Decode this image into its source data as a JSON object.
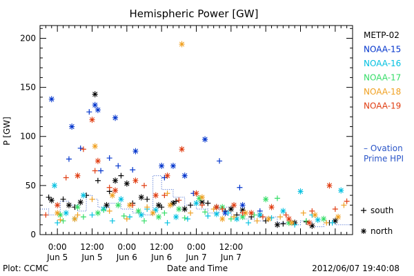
{
  "chart_data": {
    "type": "scatter",
    "title": "Hemispheric Power [GW]",
    "xlabel": "Date and Time",
    "ylabel": "P [GW]",
    "ylim": [
      0,
      213
    ],
    "xlim": [
      -6,
      102
    ],
    "x_units": "hours since Jun 5 00:00",
    "yticks": [
      "0",
      "50",
      "100",
      "150",
      "200"
    ],
    "xticks": [
      {
        "t": 0,
        "time": "0:00",
        "date": "Jun 5"
      },
      {
        "t": 12,
        "time": "12:00",
        "date": "Jun 5"
      },
      {
        "t": 24,
        "time": "0:00",
        "date": "Jun 6"
      },
      {
        "t": 36,
        "time": "12:00",
        "date": "Jun 6"
      },
      {
        "t": 48,
        "time": "0:00",
        "date": "Jun 7"
      },
      {
        "t": 60,
        "time": "12:00",
        "date": "Jun 7"
      }
    ],
    "legend_placement": "right",
    "marker_legend": [
      {
        "symbol": "+",
        "label": "south"
      },
      {
        "symbol": "*",
        "label": "north"
      }
    ],
    "ovation_label_1": "– Ovation",
    "ovation_label_2": "Prime HPI",
    "series": [
      {
        "name": "METP-02",
        "color": "#000000",
        "north": [
          [
            -2,
            35
          ],
          [
            4,
            30
          ],
          [
            8,
            33
          ],
          [
            13,
            143
          ],
          [
            17,
            30
          ],
          [
            20,
            55
          ],
          [
            24,
            52
          ],
          [
            29,
            38
          ],
          [
            35,
            30
          ],
          [
            40,
            32
          ],
          [
            44,
            26
          ],
          [
            50,
            33
          ],
          [
            55,
            28
          ],
          [
            60,
            26
          ],
          [
            64,
            25
          ],
          [
            70,
            20
          ],
          [
            76,
            10
          ],
          [
            82,
            12
          ],
          [
            88,
            9
          ],
          [
            96,
            14
          ]
        ],
        "south": [
          [
            -3,
            38
          ],
          [
            2,
            36
          ],
          [
            6,
            28
          ],
          [
            10,
            40
          ],
          [
            14,
            55
          ],
          [
            18,
            44
          ],
          [
            22,
            60
          ],
          [
            26,
            32
          ],
          [
            31,
            36
          ],
          [
            36,
            28
          ],
          [
            41,
            34
          ],
          [
            46,
            30
          ],
          [
            52,
            32
          ],
          [
            58,
            24
          ],
          [
            62,
            20
          ],
          [
            67,
            18
          ],
          [
            72,
            14
          ],
          [
            78,
            11
          ],
          [
            86,
            13
          ],
          [
            94,
            12
          ]
        ]
      },
      {
        "name": "NOAA-15",
        "color": "#0033cc",
        "north": [
          [
            -2,
            138
          ],
          [
            5,
            110
          ],
          [
            13,
            132
          ],
          [
            14,
            127
          ],
          [
            20,
            119
          ],
          [
            27,
            85
          ],
          [
            36,
            70
          ],
          [
            40,
            70
          ],
          [
            44,
            60
          ],
          [
            51,
            97
          ],
          [
            58,
            22
          ],
          [
            64,
            30
          ]
        ],
        "south": [
          [
            4,
            77
          ],
          [
            8,
            88
          ],
          [
            11,
            125
          ],
          [
            15,
            65
          ],
          [
            18,
            78
          ],
          [
            21,
            70
          ],
          [
            26,
            66
          ],
          [
            37,
            58
          ],
          [
            47,
            42
          ],
          [
            56,
            75
          ],
          [
            63,
            48
          ],
          [
            70,
            24
          ]
        ]
      },
      {
        "name": "NOAA-16",
        "color": "#00c0e0",
        "north": [
          [
            -1,
            50
          ],
          [
            3,
            22
          ],
          [
            9,
            40
          ],
          [
            16,
            26
          ],
          [
            22,
            36
          ],
          [
            29,
            20
          ],
          [
            34,
            25
          ],
          [
            41,
            18
          ],
          [
            48,
            32
          ],
          [
            55,
            21
          ],
          [
            62,
            16
          ],
          [
            70,
            20
          ],
          [
            78,
            24
          ],
          [
            84,
            44
          ],
          [
            90,
            15
          ],
          [
            98,
            45
          ]
        ],
        "south": [
          [
            0,
            12
          ],
          [
            6,
            16
          ],
          [
            12,
            20
          ],
          [
            19,
            14
          ],
          [
            25,
            18
          ],
          [
            31,
            26
          ],
          [
            38,
            12
          ],
          [
            45,
            16
          ],
          [
            52,
            19
          ],
          [
            59,
            22
          ],
          [
            66,
            12
          ],
          [
            74,
            17
          ],
          [
            82,
            10
          ],
          [
            88,
            20
          ],
          [
            95,
            12
          ]
        ]
      },
      {
        "name": "NOAA-17",
        "color": "#33dd66",
        "north": [
          [
            1,
            20
          ],
          [
            7,
            28
          ],
          [
            14,
            22
          ],
          [
            21,
            30
          ],
          [
            28,
            24
          ],
          [
            35,
            18
          ],
          [
            42,
            26
          ],
          [
            49,
            37
          ],
          [
            57,
            28
          ],
          [
            64,
            18
          ],
          [
            72,
            36
          ],
          [
            80,
            12
          ],
          [
            92,
            16
          ]
        ],
        "south": [
          [
            2,
            14
          ],
          [
            9,
            18
          ],
          [
            16,
            25
          ],
          [
            23,
            19
          ],
          [
            30,
            14
          ],
          [
            37,
            22
          ],
          [
            44,
            17
          ],
          [
            51,
            23
          ],
          [
            60,
            16
          ],
          [
            68,
            20
          ],
          [
            76,
            37
          ],
          [
            86,
            14
          ]
        ]
      },
      {
        "name": "NOAA-18",
        "color": "#f0a020",
        "north": [
          [
            0,
            22
          ],
          [
            6,
            16
          ],
          [
            13,
            90
          ],
          [
            19,
            40
          ],
          [
            25,
            30
          ],
          [
            33,
            22
          ],
          [
            39,
            30
          ],
          [
            43,
            194
          ],
          [
            50,
            38
          ],
          [
            57,
            16
          ],
          [
            65,
            22
          ],
          [
            73,
            16
          ],
          [
            81,
            12
          ],
          [
            89,
            20
          ],
          [
            97,
            18
          ]
        ],
        "south": [
          [
            1,
            15
          ],
          [
            7,
            20
          ],
          [
            12,
            36
          ],
          [
            18,
            24
          ],
          [
            24,
            16
          ],
          [
            31,
            28
          ],
          [
            38,
            42
          ],
          [
            46,
            22
          ],
          [
            54,
            26
          ],
          [
            61,
            18
          ],
          [
            69,
            14
          ],
          [
            77,
            18
          ],
          [
            85,
            22
          ],
          [
            93,
            12
          ],
          [
            99,
            30
          ]
        ]
      },
      {
        "name": "NOAA-19",
        "color": "#e03c10",
        "north": [
          [
            0,
            30
          ],
          [
            7,
            60
          ],
          [
            12,
            117
          ],
          [
            14,
            75
          ],
          [
            20,
            45
          ],
          [
            27,
            55
          ],
          [
            34,
            40
          ],
          [
            38,
            60
          ],
          [
            43,
            87
          ],
          [
            48,
            42
          ],
          [
            55,
            28
          ],
          [
            61,
            30
          ],
          [
            67,
            22
          ],
          [
            74,
            28
          ],
          [
            80,
            16
          ],
          [
            87,
            12
          ],
          [
            94,
            50
          ]
        ],
        "south": [
          [
            -4,
            20
          ],
          [
            3,
            58
          ],
          [
            9,
            87
          ],
          [
            13,
            65
          ],
          [
            18,
            48
          ],
          [
            26,
            30
          ],
          [
            30,
            50
          ],
          [
            37,
            40
          ],
          [
            42,
            35
          ],
          [
            50,
            30
          ],
          [
            57,
            26
          ],
          [
            64,
            22
          ],
          [
            71,
            18
          ],
          [
            79,
            20
          ],
          [
            88,
            24
          ],
          [
            96,
            26
          ],
          [
            100,
            34
          ]
        ]
      }
    ],
    "ovation": [
      {
        "x": [
          -6,
          -3,
          -3,
          1,
          1,
          4,
          4,
          7,
          7,
          10,
          10,
          12,
          12,
          14,
          14,
          18,
          18,
          22,
          22,
          26,
          26,
          30,
          30,
          33,
          33,
          36,
          36,
          40,
          40,
          44,
          44,
          48,
          48,
          52,
          52,
          56,
          56,
          60,
          60,
          64,
          64,
          68,
          68,
          72,
          72,
          76,
          76,
          80,
          80,
          84,
          84,
          88,
          88,
          92,
          92,
          96,
          96,
          102
        ],
        "y": [
          26,
          26,
          20,
          20,
          34,
          34,
          30,
          30,
          24,
          24,
          40,
          40,
          36,
          36,
          28,
          28,
          32,
          32,
          26,
          26,
          22,
          22,
          20,
          20,
          60,
          60,
          46,
          46,
          38,
          38,
          30,
          30,
          26,
          26,
          22,
          22,
          28,
          28,
          20,
          20,
          16,
          16,
          14,
          14,
          18,
          18,
          12,
          12,
          10,
          10,
          14,
          14,
          8,
          8,
          12,
          12,
          10,
          10
        ]
      }
    ],
    "footer_left": "Plot: CCMC",
    "footer_right": "2012/06/07 19:40:08"
  }
}
